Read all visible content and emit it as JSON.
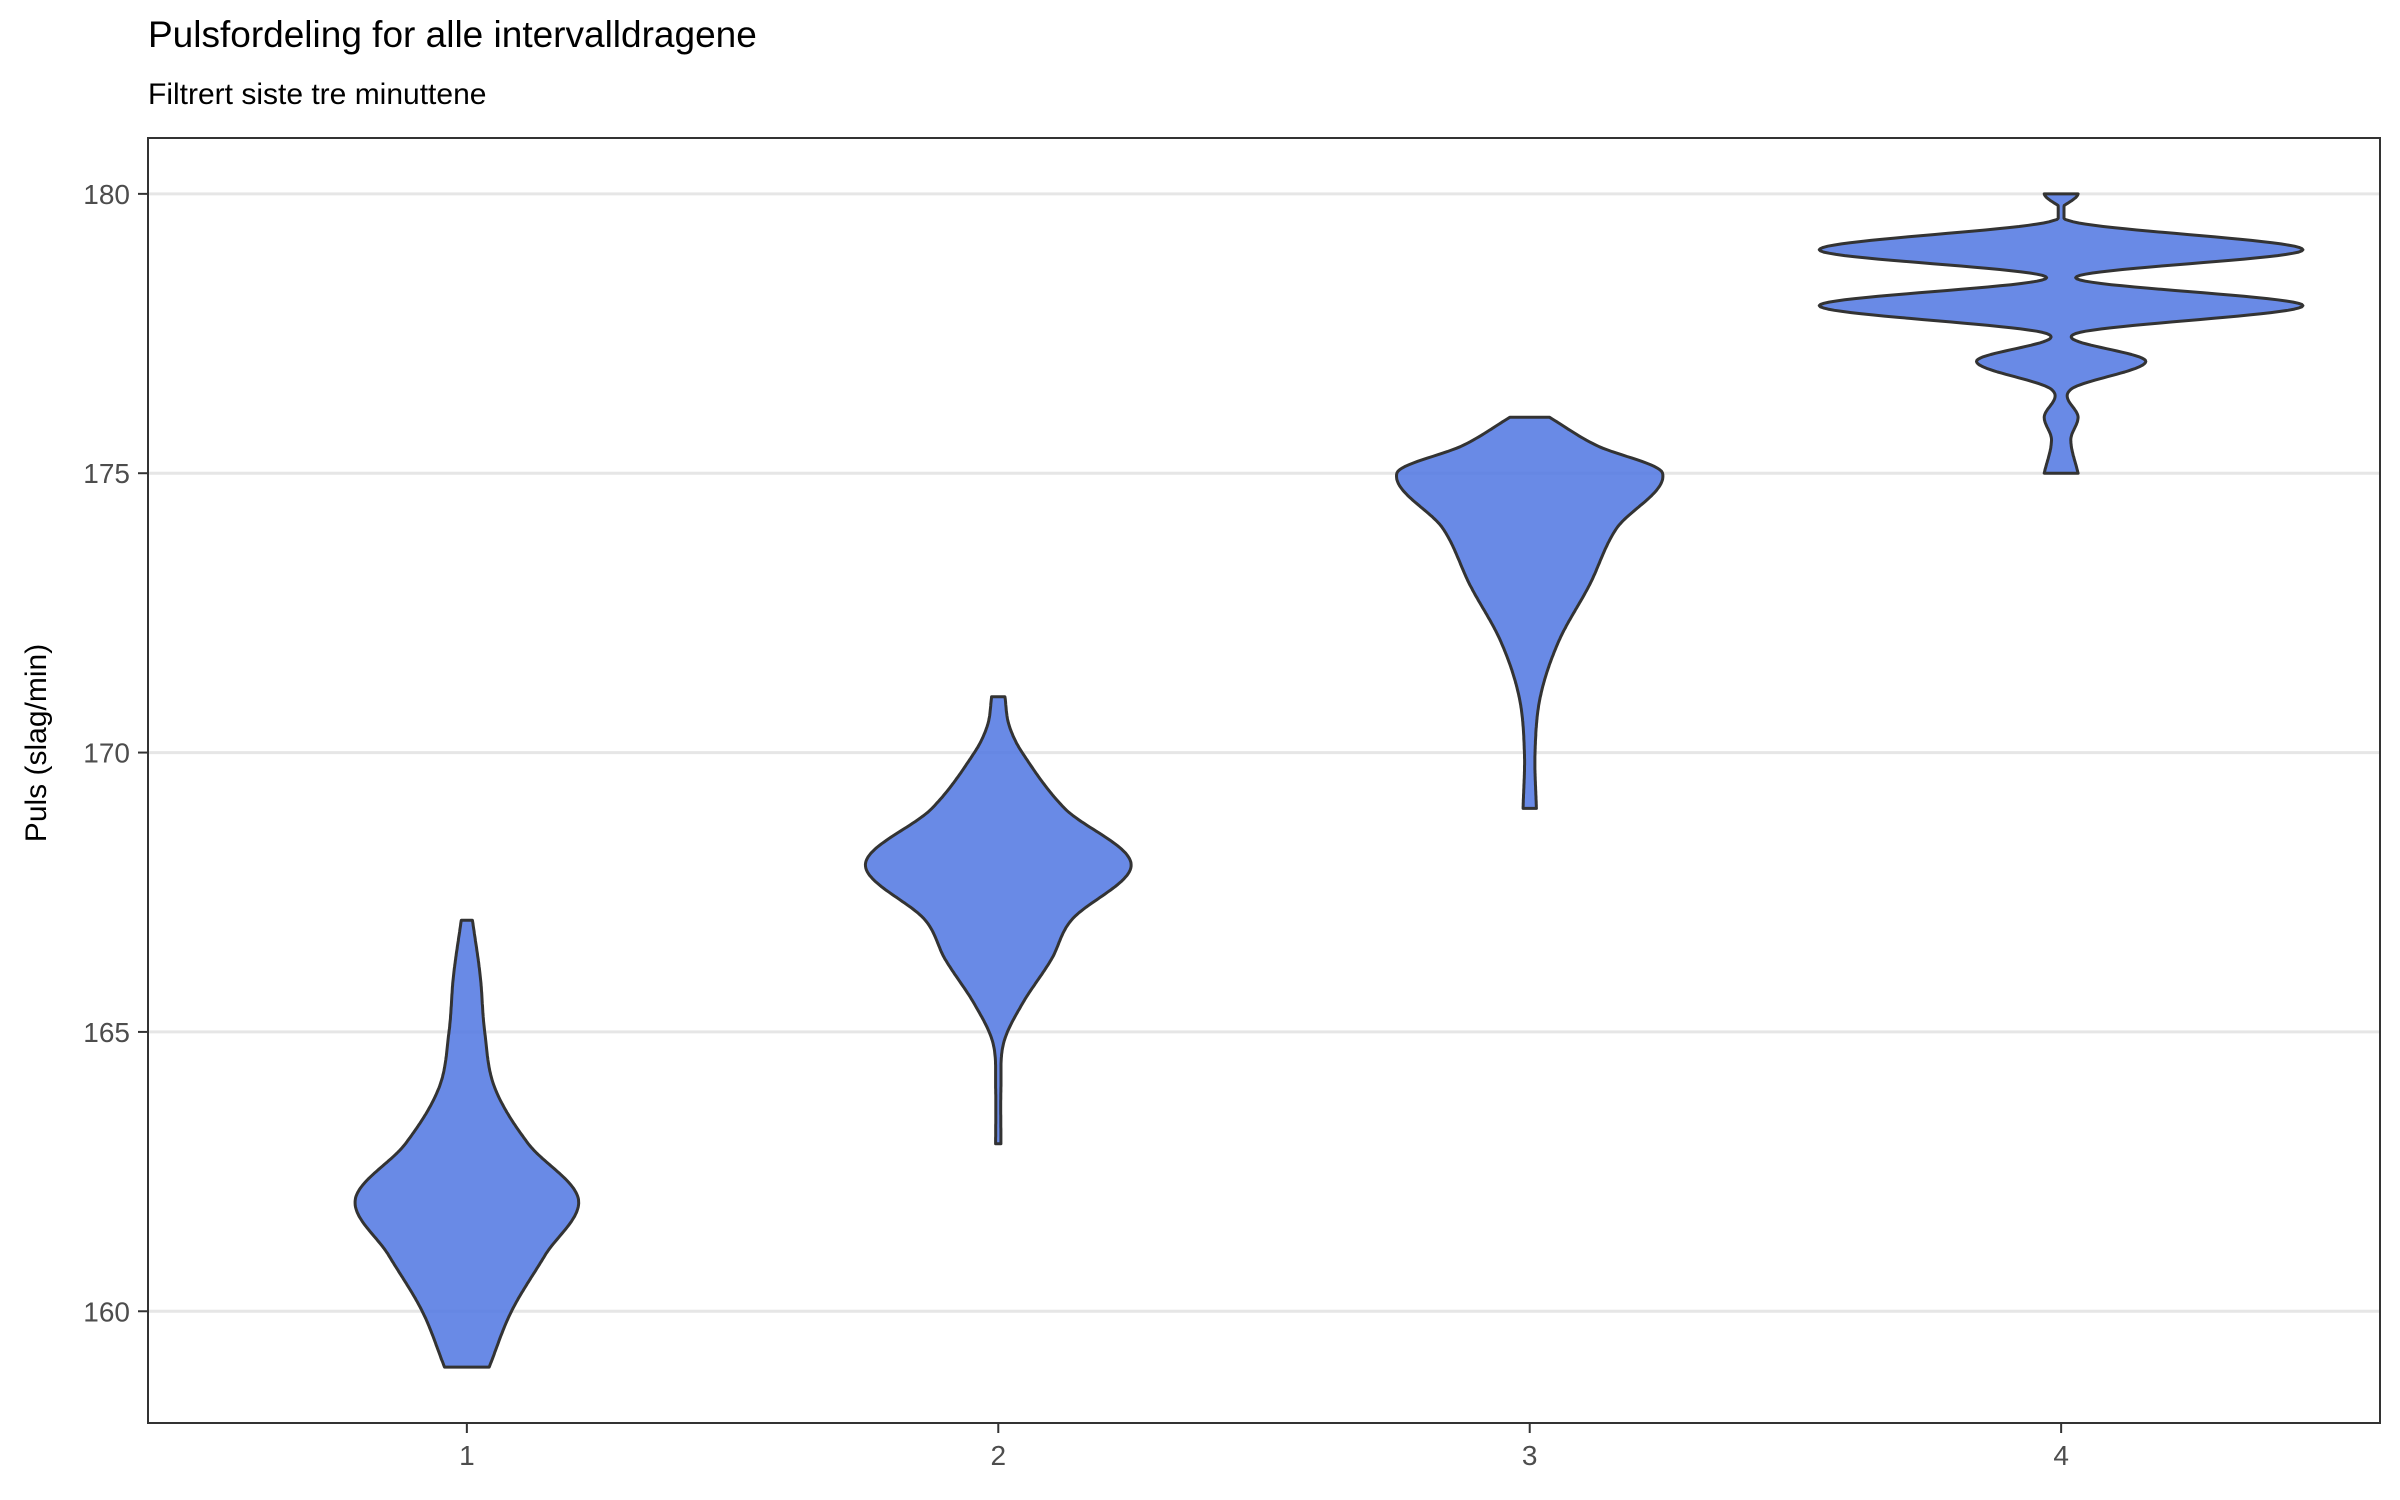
{
  "chart_data": {
    "type": "violin",
    "title": "Pulsfordeling for alle intervalldragene",
    "subtitle": "Filtrert siste tre minuttene",
    "xlabel": "",
    "ylabel": "Puls (slag/min)",
    "categories": [
      "1",
      "2",
      "3",
      "4"
    ],
    "ylim": [
      158,
      181
    ],
    "yticks": [
      160,
      165,
      170,
      175,
      180
    ],
    "grid": "horizontal",
    "legend": "none",
    "fill_color": "#4F76E2",
    "outline_color": "#333333",
    "grid_color": "#E6E6E6",
    "violins": [
      {
        "category": "1",
        "width_scale": 0.42,
        "profile": [
          [
            159,
            0.2
          ],
          [
            160,
            0.4
          ],
          [
            161,
            0.7
          ],
          [
            162,
            1.0
          ],
          [
            163,
            0.55
          ],
          [
            164,
            0.25
          ],
          [
            165,
            0.16
          ],
          [
            166,
            0.12
          ],
          [
            167,
            0.05
          ]
        ]
      },
      {
        "category": "2",
        "width_scale": 0.5,
        "profile": [
          [
            163,
            0.02
          ],
          [
            164,
            0.02
          ],
          [
            164.8,
            0.04
          ],
          [
            165.5,
            0.18
          ],
          [
            166.3,
            0.4
          ],
          [
            167,
            0.55
          ],
          [
            168,
            1.0
          ],
          [
            169,
            0.5
          ],
          [
            170,
            0.18
          ],
          [
            170.5,
            0.08
          ],
          [
            171,
            0.05
          ]
        ]
      },
      {
        "category": "3",
        "width_scale": 0.5,
        "profile": [
          [
            169,
            0.05
          ],
          [
            170,
            0.04
          ],
          [
            171,
            0.08
          ],
          [
            172,
            0.22
          ],
          [
            173,
            0.45
          ],
          [
            174,
            0.65
          ],
          [
            175,
            1.0
          ],
          [
            175.5,
            0.5
          ],
          [
            176,
            0.15
          ]
        ]
      },
      {
        "category": "4",
        "width_scale": 0.91,
        "profile": [
          [
            175,
            0.07
          ],
          [
            175.6,
            0.04
          ],
          [
            176,
            0.07
          ],
          [
            176.5,
            0.04
          ],
          [
            177,
            0.35
          ],
          [
            177.5,
            0.06
          ],
          [
            178,
            1.0
          ],
          [
            178.5,
            0.06
          ],
          [
            179,
            1.0
          ],
          [
            179.5,
            0.05
          ],
          [
            180,
            0.07
          ]
        ]
      }
    ]
  }
}
